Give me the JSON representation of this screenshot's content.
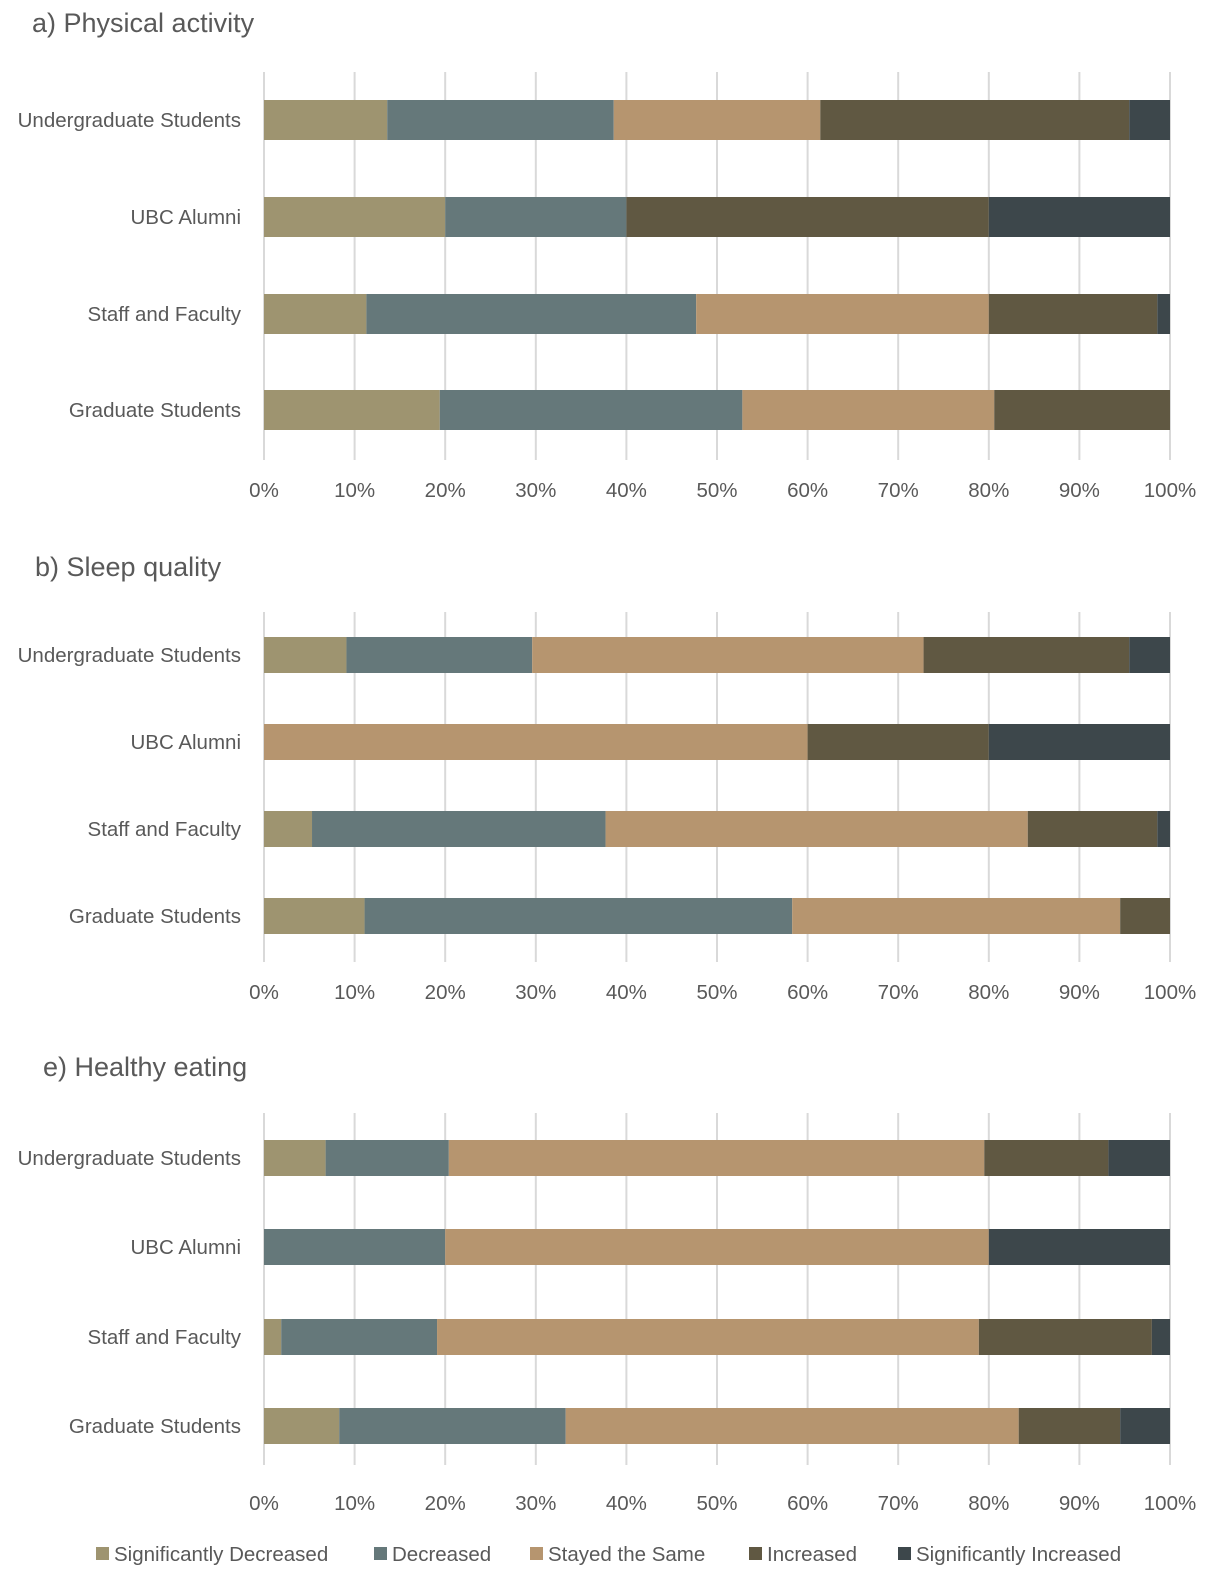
{
  "chart_data": [
    {
      "type": "bar",
      "orientation": "horizontal",
      "stacked": "percent",
      "title": "a) Physical activity",
      "categories": [
        "Undergraduate Students",
        "UBC Alumni",
        "Staff and Faculty",
        "Graduate Students"
      ],
      "series": [
        {
          "name": "Significantly Decreased",
          "values": [
            13.6,
            20.0,
            11.3,
            19.4
          ]
        },
        {
          "name": "Decreased",
          "values": [
            25.0,
            20.0,
            36.4,
            33.4
          ]
        },
        {
          "name": "Stayed the Same",
          "values": [
            22.8,
            0.0,
            32.3,
            27.8
          ]
        },
        {
          "name": "Increased",
          "values": [
            34.1,
            40.0,
            18.6,
            19.4
          ]
        },
        {
          "name": "Significantly Increased",
          "values": [
            4.5,
            20.0,
            1.4,
            0.0
          ]
        }
      ],
      "xlim": [
        0,
        100
      ],
      "ticks": [
        "0%",
        "10%",
        "20%",
        "30%",
        "40%",
        "50%",
        "60%",
        "70%",
        "80%",
        "90%",
        "100%"
      ],
      "grid": "vertical"
    },
    {
      "type": "bar",
      "orientation": "horizontal",
      "stacked": "percent",
      "title": "b) Sleep quality",
      "categories": [
        "Undergraduate Students",
        "UBC Alumni",
        "Staff and Faculty",
        "Graduate Students"
      ],
      "series": [
        {
          "name": "Significantly Decreased",
          "values": [
            9.1,
            0.0,
            5.3,
            11.1
          ]
        },
        {
          "name": "Decreased",
          "values": [
            20.5,
            0.0,
            32.4,
            47.2
          ]
        },
        {
          "name": "Stayed the Same",
          "values": [
            43.2,
            60.0,
            46.6,
            36.2
          ]
        },
        {
          "name": "Increased",
          "values": [
            22.7,
            20.0,
            14.3,
            5.5
          ]
        },
        {
          "name": "Significantly Increased",
          "values": [
            4.5,
            20.0,
            1.4,
            0.0
          ]
        }
      ],
      "xlim": [
        0,
        100
      ],
      "ticks": [
        "0%",
        "10%",
        "20%",
        "30%",
        "40%",
        "50%",
        "60%",
        "70%",
        "80%",
        "90%",
        "100%"
      ],
      "grid": "vertical"
    },
    {
      "type": "bar",
      "orientation": "horizontal",
      "stacked": "percent",
      "title": "e) Healthy eating",
      "categories": [
        "Undergraduate Students",
        "UBC Alumni",
        "Staff and Faculty",
        "Graduate Students"
      ],
      "series": [
        {
          "name": "Significantly Decreased",
          "values": [
            6.8,
            0.0,
            1.9,
            8.3
          ]
        },
        {
          "name": "Decreased",
          "values": [
            13.6,
            20.0,
            17.2,
            25.0
          ]
        },
        {
          "name": "Stayed the Same",
          "values": [
            59.1,
            60.0,
            59.8,
            50.0
          ]
        },
        {
          "name": "Increased",
          "values": [
            13.7,
            0.0,
            19.1,
            11.2
          ]
        },
        {
          "name": "Significantly Increased",
          "values": [
            6.8,
            20.0,
            2.0,
            5.5
          ]
        }
      ],
      "xlim": [
        0,
        100
      ],
      "ticks": [
        "0%",
        "10%",
        "20%",
        "30%",
        "40%",
        "50%",
        "60%",
        "70%",
        "80%",
        "90%",
        "100%"
      ],
      "grid": "vertical"
    }
  ],
  "legend": {
    "position": "bottom",
    "items": [
      {
        "label": "Significantly Decreased",
        "color": "#9e9470"
      },
      {
        "label": "Decreased",
        "color": "#65787a"
      },
      {
        "label": "Stayed the Same",
        "color": "#b6956f"
      },
      {
        "label": "Increased",
        "color": "#605842"
      },
      {
        "label": "Significantly Increased",
        "color": "#3d474b"
      }
    ]
  }
}
